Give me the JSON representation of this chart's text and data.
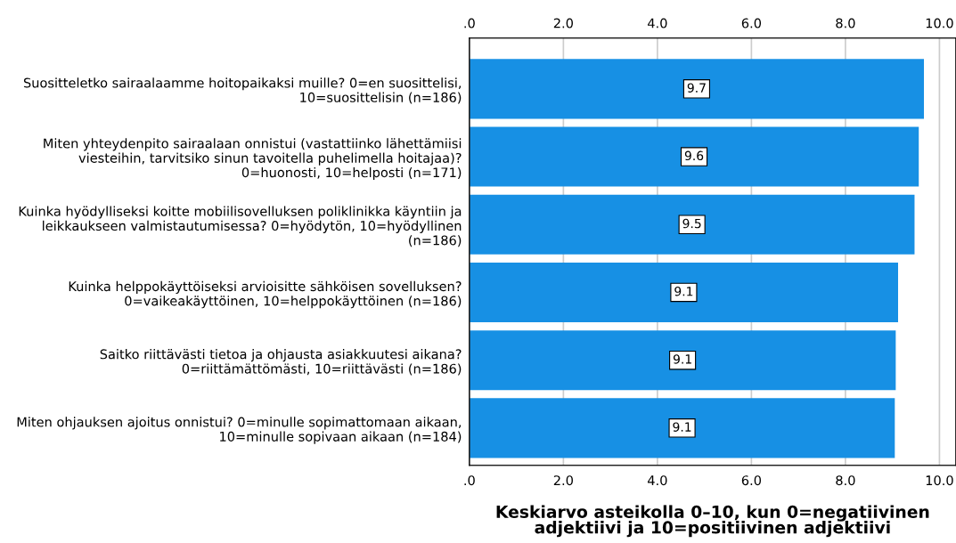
{
  "chart_data": {
    "type": "bar",
    "orientation": "horizontal",
    "categories": [
      "Suositteletko sairaalaamme hoitopaikaksi muille? 0=en suosittelisi,\n10=suosittelisin (n=186)",
      "Miten yhteydenpito sairaalaan onnistui (vastattiinko lähettämiisi\nviesteihin, tarvitsiko sinun tavoitella puhelimella hoitajaa)?\n0=huonosti, 10=helposti (n=171)",
      "Kuinka hyödylliseksi koitte mobiilisovelluksen poliklinikka käyntiin ja\nleikkaukseen valmistautumisessa? 0=hyödytön, 10=hyödyllinen\n(n=186)",
      "Kuinka helppokäyttöiseksi arvioisitte sähköisen sovelluksen?\n0=vaikeakäyttöinen, 10=helppokäyttöinen (n=186)",
      "Saitko riittävästi tietoa ja ohjausta asiakkuutesi aikana?\n0=riittämättömästi, 10=riittävästi (n=186)",
      "Miten ohjauksen ajoitus onnistui? 0=minulle sopimattomaan aikaan,\n10=minulle sopivaan aikaan (n=184)"
    ],
    "values": [
      9.67,
      9.56,
      9.47,
      9.12,
      9.07,
      9.05
    ],
    "value_labels": [
      "9.7",
      "9.6",
      "9.5",
      "9.1",
      "9.1",
      "9.1"
    ],
    "color": "#1790e4",
    "xlabel": "Keskiarvo asteikolla 0–10, kun 0=negatiivinen\nadjektiivi ja 10=positiivinen adjektiivi",
    "xlim": [
      0,
      10.35
    ],
    "xticks": [
      {
        "value": 0,
        "label": ".0"
      },
      {
        "value": 2,
        "label": "2.0"
      },
      {
        "value": 4,
        "label": "4.0"
      },
      {
        "value": 6,
        "label": "6.0"
      },
      {
        "value": 8,
        "label": "8.0"
      },
      {
        "value": 10,
        "label": "10.0"
      }
    ],
    "x2lim": [
      0,
      10.35
    ],
    "x2ticks": [
      {
        "value": 0,
        "label": ".0"
      },
      {
        "value": 2,
        "label": "2.0"
      },
      {
        "value": 4,
        "label": "4.0"
      },
      {
        "value": 6,
        "label": "6.0"
      },
      {
        "value": 8,
        "label": "8.0"
      },
      {
        "value": 10,
        "label": "10.0"
      }
    ],
    "grid": "x"
  }
}
